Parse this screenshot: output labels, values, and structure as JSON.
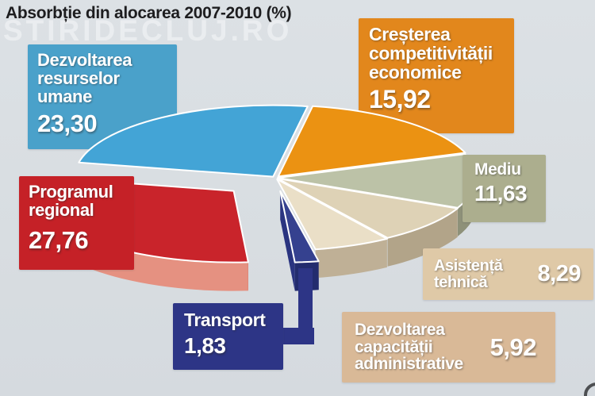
{
  "title": "Absorbție din alocarea 2007-2010 (%)",
  "watermark": "STIRIDECLUJ.RO",
  "background_color": "#D8DDE1",
  "chart_data": {
    "type": "pie",
    "title": "Absorbție din alocarea 2007-2010 (%)",
    "unit": "%",
    "legend_position": "callout-boxes",
    "start_angle_deg": -80,
    "style": "3d-exploded",
    "categories": [
      "Creșterea competitivității economice",
      "Mediu",
      "Asistență tehnică",
      "Dezvoltarea capacității administrative",
      "Transport",
      "Programul regional",
      "Dezvoltarea resurselor umane"
    ],
    "values": [
      15.92,
      11.63,
      8.29,
      5.92,
      1.83,
      27.76,
      23.3
    ],
    "slices": [
      {
        "label": "Creșterea competitivității economice",
        "value": 15.92,
        "display": "15,92",
        "top_color": "#EB9212",
        "rim_color": "#C47810",
        "side_color": "#C47810",
        "explode": 4
      },
      {
        "label": "Mediu",
        "value": 11.63,
        "display": "11,63",
        "top_color": "#BCC2A7",
        "rim_color": "#8E9179",
        "side_color": "#8E9179",
        "explode": 3
      },
      {
        "label": "Asistență tehnică",
        "value": 8.29,
        "display": "8,29",
        "top_color": "#DED2B6",
        "rim_color": "#B2A489",
        "side_color": "#B2A489",
        "explode": 3
      },
      {
        "label": "Dezvoltarea capacității administrative",
        "value": 5.92,
        "display": "5,92",
        "top_color": "#EADFC7",
        "rim_color": "#BFB096",
        "side_color": "#BFB096",
        "explode": 3
      },
      {
        "label": "Transport",
        "value": 1.83,
        "display": "1,83",
        "top_color": "#35418F",
        "rim_color": "#232C6E",
        "side_color": "#2A3480",
        "explode": 18
      },
      {
        "label": "Programul regional",
        "value": 27.76,
        "display": "27,76",
        "top_color": "#C9242B",
        "rim_color": "#E59181",
        "side_color": "#A01B21",
        "explode": 55
      },
      {
        "label": "Dezvoltarea resurselor umane",
        "value": 23.3,
        "display": "23,30",
        "top_color": "#43A4D6",
        "rim_color": "#2E7FA8",
        "side_color": "#2E7FA8",
        "explode": 3
      }
    ]
  },
  "callouts": {
    "umane": {
      "label": "Dezvoltarea\nresurselor\numane",
      "value": "23,30",
      "color": "#4AA1CA"
    },
    "competitivitate": {
      "label": "Creșterea\ncompetitivității\neconomice",
      "value": "15,92",
      "color": "#E2871C"
    },
    "mediu": {
      "label": "Mediu",
      "value": "11,63",
      "color": "#ACAE8E"
    },
    "asistenta": {
      "label": "Asistență\ntehnică",
      "value": "8,29",
      "color": "#DFC9A7"
    },
    "capacitate": {
      "label": "Dezvoltarea\ncapacității\nadministrative",
      "value": "5,92",
      "color": "#D9B997"
    },
    "transport": {
      "label": "Transport",
      "value": "1,83",
      "color": "#2D3586"
    },
    "regional": {
      "label": "Programul\nregional",
      "value": "27,76",
      "color": "#C52127"
    }
  }
}
